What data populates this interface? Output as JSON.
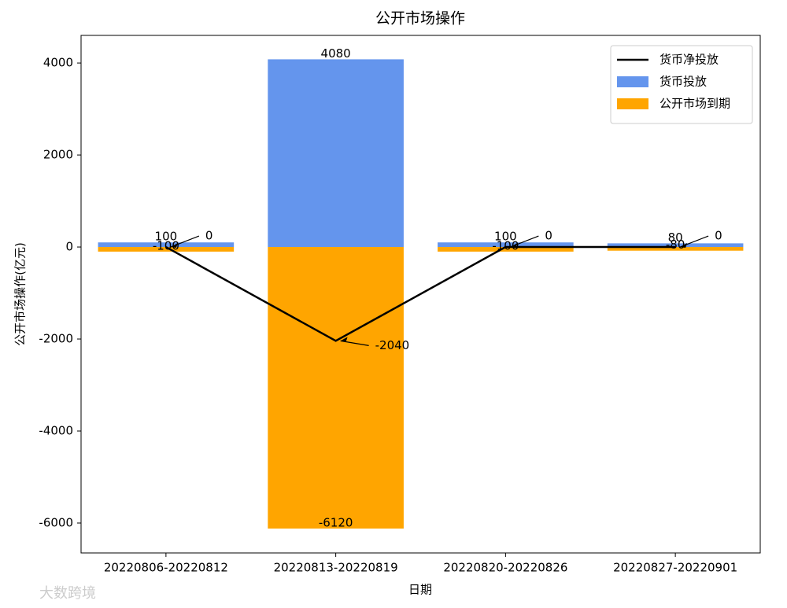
{
  "chart_data": {
    "type": "bar",
    "title": "公开市场操作",
    "x_label": "日期",
    "y_label": "公开市场操作(亿元)",
    "categories": [
      "20220806-20220812",
      "20220813-20220819",
      "20220820-20220826",
      "20220827-20220901"
    ],
    "series": [
      {
        "name": "货币净投放",
        "type": "line",
        "color": "#000000",
        "values": [
          0,
          -2040,
          0,
          0
        ]
      },
      {
        "name": "货币投放",
        "type": "bar",
        "color": "#6495ed",
        "values": [
          100,
          4080,
          100,
          80
        ]
      },
      {
        "name": "公开市场到期",
        "type": "bar",
        "color": "#ffa500",
        "values": [
          -100,
          -6120,
          -100,
          -80
        ]
      }
    ],
    "ylim": [
      -6650,
      4600
    ],
    "yticks": [
      -6000,
      -4000,
      -2000,
      0,
      2000,
      4000
    ],
    "legend": "upper right",
    "watermark": "大数跨境"
  }
}
